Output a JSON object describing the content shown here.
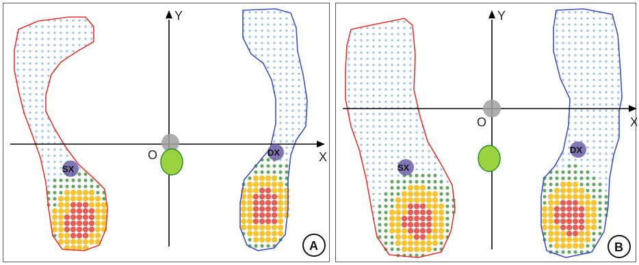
{
  "panels": [
    {
      "id": "A",
      "axis_x": "X",
      "axis_y": "Y",
      "origin": "O",
      "left_point": "SX",
      "right_point": "DX",
      "badge": "A"
    },
    {
      "id": "B",
      "axis_x": "X",
      "axis_y": "Y",
      "origin": "O",
      "left_point": "SX",
      "right_point": "DX",
      "badge": "B"
    }
  ],
  "colors": {
    "left_outline": "#e0342c",
    "right_outline": "#3a4fc0",
    "cog": "#9ad33f",
    "origin_marker": "#a0a0a0",
    "centroid": "#6b5fa8",
    "pressure_low": "#6fa8dc",
    "pressure_mid": "#3e8e3e",
    "pressure_high": "#f4b400",
    "pressure_max": "#e0342c"
  }
}
